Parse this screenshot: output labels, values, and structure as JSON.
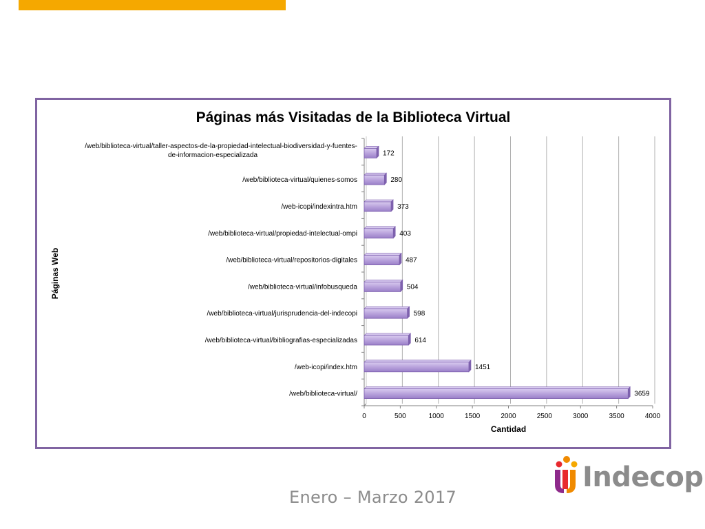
{
  "footer": {
    "date_text": "Enero – Marzo 2017"
  },
  "logo": {
    "text": "Indecopi",
    "icon": "indecopi-logo-icon"
  },
  "colors": {
    "accent": "#f5a800",
    "frame": "#8064a2",
    "bar_fill": "#b9a3dc",
    "bar_edge": "#7d5fae",
    "grid": "#b0b0b0",
    "footer_text": "#8c8c8c"
  },
  "chart_data": {
    "type": "bar",
    "orientation": "horizontal",
    "title": "Páginas más Visitadas de la Biblioteca Virtual",
    "xlabel": "Cantidad",
    "ylabel": "Páginas Web",
    "xlim": [
      0,
      4000
    ],
    "xticks": [
      0,
      500,
      1000,
      1500,
      2000,
      2500,
      3000,
      3500,
      4000
    ],
    "grid": true,
    "categories": [
      [
        "/web/biblioteca-virtual/taller-aspectos-de-la-propiedad-intelectual-biodiversidad-y-fuentes-",
        "de-informacion-especializada"
      ],
      [
        "/web/biblioteca-virtual/quienes-somos"
      ],
      [
        "/web-icopi/indexintra.htm"
      ],
      [
        "/web/biblioteca-virtual/propiedad-intelectual-ompi"
      ],
      [
        "/web/biblioteca-virtual/repositorios-digitales"
      ],
      [
        "/web/biblioteca-virtual/infobusqueda"
      ],
      [
        "/web/biblioteca-virtual/jurisprudencia-del-indecopi"
      ],
      [
        "/web/biblioteca-virtual/bibliografias-especializadas"
      ],
      [
        "/web-icopi/index.htm"
      ],
      [
        "/web/biblioteca-virtual/"
      ]
    ],
    "values": [
      172,
      280,
      373,
      403,
      487,
      504,
      598,
      614,
      1451,
      3659
    ]
  }
}
